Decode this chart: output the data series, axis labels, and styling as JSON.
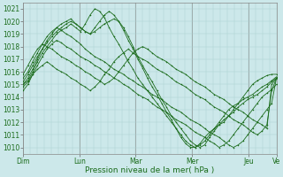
{
  "xlabel": "Pression niveau de la mer( hPa )",
  "bg_color": "#cce8ea",
  "grid_color": "#aacfcf",
  "line_color": "#1a6b1a",
  "ylim": [
    1009.5,
    1021.5
  ],
  "yticks": [
    1010,
    1011,
    1012,
    1013,
    1014,
    1015,
    1016,
    1017,
    1018,
    1019,
    1020,
    1021
  ],
  "day_positions": [
    0,
    24,
    48,
    72,
    96,
    108
  ],
  "day_labels": [
    "Dim",
    "Lun",
    "Mar",
    "Mer",
    "Jeu",
    "Ve"
  ],
  "series": [
    [
      1015.0,
      1015.3,
      1016.0,
      1016.8,
      1017.5,
      1018.0,
      1018.5,
      1019.0,
      1019.3,
      1019.5,
      1019.8,
      1019.5,
      1019.2,
      1019.8,
      1020.5,
      1021.0,
      1020.8,
      1020.3,
      1019.5,
      1018.8,
      1018.2,
      1017.5,
      1016.8,
      1016.2,
      1015.5,
      1015.0,
      1014.5,
      1014.0,
      1013.5,
      1013.0,
      1012.5,
      1012.0,
      1011.5,
      1011.0,
      1010.5,
      1010.2,
      1010.0,
      1010.3,
      1010.8,
      1011.2,
      1011.5,
      1011.8,
      1012.0,
      1012.5,
      1013.0,
      1013.5,
      1014.0,
      1014.5,
      1015.0,
      1015.3,
      1015.5,
      1015.7,
      1015.8,
      1015.8
    ],
    [
      1015.2,
      1015.8,
      1016.5,
      1017.2,
      1017.8,
      1018.3,
      1018.8,
      1019.2,
      1019.5,
      1019.8,
      1020.0,
      1019.8,
      1019.5,
      1019.2,
      1019.0,
      1019.2,
      1019.5,
      1019.8,
      1020.0,
      1020.2,
      1020.0,
      1019.5,
      1018.8,
      1018.0,
      1017.2,
      1016.5,
      1015.8,
      1015.2,
      1014.5,
      1013.8,
      1013.2,
      1012.5,
      1012.0,
      1011.5,
      1011.0,
      1010.5,
      1010.2,
      1010.0,
      1010.2,
      1010.8,
      1011.3,
      1011.8,
      1012.2,
      1012.5,
      1012.8,
      1013.2,
      1013.5,
      1013.8,
      1014.0,
      1014.2,
      1014.5,
      1014.8,
      1015.2,
      1015.5
    ],
    [
      1015.0,
      1015.5,
      1016.2,
      1017.0,
      1017.8,
      1018.5,
      1019.0,
      1019.5,
      1019.8,
      1020.0,
      1020.2,
      1019.8,
      1019.5,
      1019.2,
      1019.0,
      1019.5,
      1020.0,
      1020.5,
      1020.8,
      1020.5,
      1020.0,
      1019.3,
      1018.5,
      1017.8,
      1017.0,
      1016.3,
      1015.5,
      1014.8,
      1014.2,
      1013.5,
      1012.8,
      1012.2,
      1011.5,
      1010.8,
      1010.3,
      1010.0,
      1010.0,
      1010.2,
      1010.5,
      1011.0,
      1011.5,
      1012.0,
      1012.5,
      1013.0,
      1013.3,
      1013.5,
      1013.8,
      1014.0,
      1014.2,
      1014.5,
      1014.8,
      1015.0,
      1015.3,
      1015.6
    ],
    [
      1015.5,
      1016.0,
      1016.8,
      1017.5,
      1018.2,
      1018.8,
      1019.2,
      1019.5,
      1019.3,
      1019.0,
      1018.8,
      1018.5,
      1018.2,
      1017.8,
      1017.5,
      1017.2,
      1017.0,
      1016.8,
      1016.5,
      1016.2,
      1016.0,
      1015.8,
      1015.5,
      1015.3,
      1015.0,
      1014.8,
      1014.5,
      1014.2,
      1014.0,
      1013.8,
      1013.5,
      1013.2,
      1013.0,
      1012.8,
      1012.5,
      1012.2,
      1012.0,
      1011.8,
      1011.5,
      1011.2,
      1011.0,
      1010.8,
      1010.5,
      1010.2,
      1010.0,
      1010.2,
      1010.5,
      1011.0,
      1011.5,
      1012.0,
      1012.5,
      1013.0,
      1013.5,
      1015.5
    ],
    [
      1014.5,
      1015.0,
      1015.8,
      1016.5,
      1017.2,
      1017.8,
      1018.2,
      1018.5,
      1018.3,
      1018.0,
      1017.8,
      1017.5,
      1017.2,
      1017.0,
      1016.8,
      1016.5,
      1016.3,
      1016.0,
      1015.8,
      1015.5,
      1015.3,
      1015.0,
      1014.8,
      1014.5,
      1014.2,
      1014.0,
      1013.8,
      1013.5,
      1013.2,
      1013.0,
      1012.8,
      1012.5,
      1012.2,
      1012.0,
      1011.8,
      1011.5,
      1011.2,
      1011.0,
      1010.8,
      1010.5,
      1010.3,
      1010.0,
      1010.2,
      1010.5,
      1011.0,
      1011.5,
      1012.0,
      1012.5,
      1013.0,
      1013.5,
      1014.0,
      1014.3,
      1014.6,
      1015.0
    ],
    [
      1015.8,
      1016.5,
      1017.2,
      1017.8,
      1018.2,
      1018.0,
      1017.8,
      1017.5,
      1017.2,
      1017.0,
      1016.8,
      1016.5,
      1016.3,
      1016.0,
      1015.8,
      1015.5,
      1015.3,
      1015.0,
      1015.2,
      1015.5,
      1016.0,
      1016.5,
      1017.0,
      1017.5,
      1017.8,
      1018.0,
      1017.8,
      1017.5,
      1017.2,
      1017.0,
      1016.8,
      1016.5,
      1016.2,
      1016.0,
      1015.8,
      1015.5,
      1015.2,
      1015.0,
      1014.8,
      1014.5,
      1014.2,
      1014.0,
      1013.8,
      1013.5,
      1013.2,
      1013.0,
      1012.8,
      1012.5,
      1012.2,
      1012.0,
      1011.8,
      1011.5,
      1015.0,
      1015.5
    ],
    [
      1014.8,
      1015.2,
      1015.8,
      1016.2,
      1016.5,
      1016.8,
      1016.5,
      1016.2,
      1016.0,
      1015.8,
      1015.5,
      1015.3,
      1015.0,
      1014.8,
      1014.5,
      1014.8,
      1015.2,
      1015.8,
      1016.2,
      1016.8,
      1017.2,
      1017.5,
      1017.8,
      1017.5,
      1017.2,
      1017.0,
      1016.8,
      1016.5,
      1016.2,
      1016.0,
      1015.8,
      1015.5,
      1015.2,
      1015.0,
      1014.8,
      1014.5,
      1014.2,
      1014.0,
      1013.8,
      1013.5,
      1013.2,
      1013.0,
      1012.8,
      1012.5,
      1012.2,
      1012.0,
      1011.8,
      1011.5,
      1011.2,
      1011.0,
      1011.3,
      1011.8,
      1014.5,
      1015.5
    ]
  ]
}
